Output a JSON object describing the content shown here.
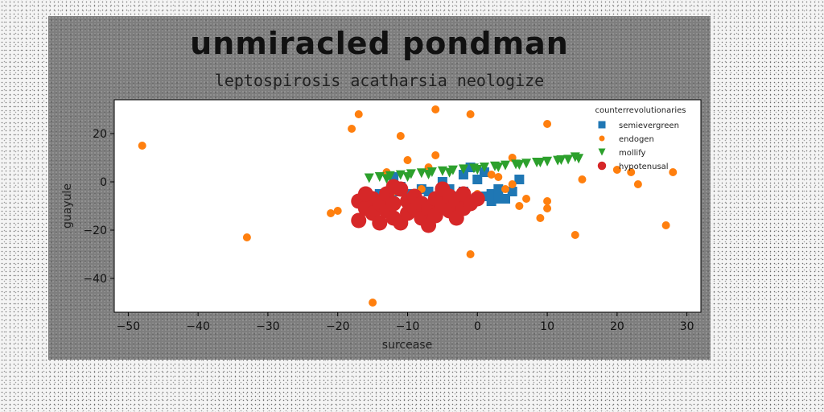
{
  "chart_data": {
    "type": "scatter",
    "title": "unmiracled pondman",
    "subtitle": "leptospirosis acatharsia neologize",
    "xlabel": "surcease",
    "ylabel": "guayule",
    "xlim": [
      -52,
      32
    ],
    "ylim": [
      -54,
      34
    ],
    "xticks": [
      -50,
      -40,
      -30,
      -20,
      -10,
      0,
      10,
      20,
      30
    ],
    "yticks": [
      -40,
      -20,
      0,
      20
    ],
    "grid": false,
    "legend": {
      "title": "counterrevolutionaries",
      "placement": "top-right"
    },
    "series": [
      {
        "name": "semievergreen",
        "marker": "square",
        "color": "#1f77b4",
        "points": [
          [
            -14,
            -5
          ],
          [
            -13,
            -7
          ],
          [
            -12,
            -4
          ],
          [
            -11,
            -2
          ],
          [
            -10,
            -5
          ],
          [
            -9,
            -8
          ],
          [
            -8,
            -3
          ],
          [
            -8,
            -10
          ],
          [
            -7,
            -4
          ],
          [
            -6,
            -6
          ],
          [
            -5,
            -9
          ],
          [
            -5,
            0
          ],
          [
            -4,
            -3
          ],
          [
            -4,
            -11
          ],
          [
            -3,
            -6
          ],
          [
            -2,
            -4
          ],
          [
            -2,
            3
          ],
          [
            -1,
            6
          ],
          [
            0,
            1
          ],
          [
            1,
            4
          ],
          [
            1,
            -6
          ],
          [
            2,
            -8
          ],
          [
            2,
            -5
          ],
          [
            3,
            -3
          ],
          [
            3,
            -7
          ],
          [
            4,
            -7
          ],
          [
            5,
            -4
          ],
          [
            6,
            1
          ],
          [
            -12,
            2
          ],
          [
            -3,
            -12
          ]
        ]
      },
      {
        "name": "endogen",
        "marker": "circle",
        "color": "#ff7f0e",
        "points": [
          [
            -48,
            15
          ],
          [
            -33,
            -23
          ],
          [
            -21,
            -13
          ],
          [
            -20,
            -12
          ],
          [
            -18,
            22
          ],
          [
            -17,
            28
          ],
          [
            -15,
            -50
          ],
          [
            -13,
            4
          ],
          [
            -12,
            -4
          ],
          [
            -12,
            -8
          ],
          [
            -11,
            19
          ],
          [
            -10,
            9
          ],
          [
            -8,
            -3
          ],
          [
            -7,
            6
          ],
          [
            -7,
            -14
          ],
          [
            -6,
            30
          ],
          [
            -6,
            11
          ],
          [
            -1,
            28
          ],
          [
            -1,
            -30
          ],
          [
            0,
            -5
          ],
          [
            2,
            3
          ],
          [
            3,
            2
          ],
          [
            4,
            -3
          ],
          [
            5,
            -1
          ],
          [
            5,
            10
          ],
          [
            6,
            -10
          ],
          [
            7,
            -7
          ],
          [
            9,
            -15
          ],
          [
            10,
            24
          ],
          [
            10,
            -8
          ],
          [
            10,
            -11
          ],
          [
            14,
            -22
          ],
          [
            15,
            1
          ],
          [
            20,
            5
          ],
          [
            22,
            4
          ],
          [
            23,
            -1
          ],
          [
            27,
            -18
          ],
          [
            28,
            4
          ]
        ]
      },
      {
        "name": "mollify",
        "marker": "triangle-down",
        "color": "#2ca02c",
        "points": [
          [
            -15.5,
            1.5
          ],
          [
            -14,
            2
          ],
          [
            -12.5,
            2.4
          ],
          [
            -11,
            2.8
          ],
          [
            -9.5,
            3.2
          ],
          [
            -8,
            3.6
          ],
          [
            -6.5,
            4
          ],
          [
            -5,
            4.4
          ],
          [
            -3.5,
            4.8
          ],
          [
            -2,
            5.2
          ],
          [
            -0.5,
            5.6
          ],
          [
            1,
            6
          ],
          [
            2.5,
            6.4
          ],
          [
            4,
            6.8
          ],
          [
            5.5,
            7.2
          ],
          [
            7,
            7.6
          ],
          [
            8.5,
            8
          ],
          [
            10,
            8.4
          ],
          [
            11.5,
            8.8
          ],
          [
            13,
            9.2
          ],
          [
            14.5,
            9.6
          ],
          [
            -13,
            1.2
          ],
          [
            -10,
            2
          ],
          [
            -7,
            3
          ],
          [
            -4,
            3.8
          ],
          [
            0,
            5
          ],
          [
            3,
            6
          ],
          [
            6,
            7
          ],
          [
            9,
            8
          ],
          [
            12,
            9
          ],
          [
            14,
            10.2
          ]
        ]
      },
      {
        "name": "hypotenusal",
        "marker": "circle",
        "color": "#d62728",
        "points": [
          [
            -17,
            -8
          ],
          [
            -17,
            -16
          ],
          [
            -16,
            -11
          ],
          [
            -15,
            -7
          ],
          [
            -15,
            -13
          ],
          [
            -14,
            -17
          ],
          [
            -14,
            -9
          ],
          [
            -13,
            -5
          ],
          [
            -13,
            -12
          ],
          [
            -12,
            -15
          ],
          [
            -12,
            -9
          ],
          [
            -11,
            -3
          ],
          [
            -11,
            -17
          ],
          [
            -10,
            -8
          ],
          [
            -10,
            -13
          ],
          [
            -9,
            -11
          ],
          [
            -9,
            -6
          ],
          [
            -8,
            -15
          ],
          [
            -8,
            -9
          ],
          [
            -7,
            -18
          ],
          [
            -7,
            -11
          ],
          [
            -6,
            -7
          ],
          [
            -6,
            -14
          ],
          [
            -5,
            -3
          ],
          [
            -5,
            -10
          ],
          [
            -4,
            -12
          ],
          [
            -4,
            -6
          ],
          [
            -3,
            -15
          ],
          [
            -3,
            -8
          ],
          [
            -2,
            -11
          ],
          [
            -2,
            -5
          ],
          [
            -1,
            -9
          ],
          [
            0,
            -7
          ],
          [
            -12,
            -2
          ],
          [
            -16,
            -5
          ]
        ]
      }
    ]
  }
}
